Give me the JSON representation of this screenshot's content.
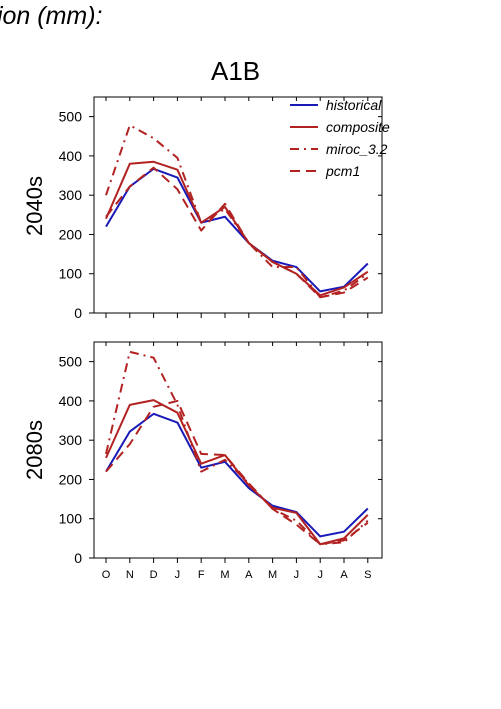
{
  "figure": {
    "title_partial": "tion (mm):",
    "scenario": "A1B",
    "rows": [
      "2040s",
      "2080s"
    ]
  },
  "colors": {
    "historical": "#1a1ab8",
    "scenario": "#b22222"
  },
  "chart_data": [
    {
      "type": "line",
      "panel": "2040s",
      "title": "A1B",
      "ylabel": "2040s",
      "categories": [
        "O",
        "N",
        "D",
        "J",
        "F",
        "M",
        "A",
        "M",
        "J",
        "J",
        "A",
        "S"
      ],
      "ylim": [
        0,
        550
      ],
      "yticks": [
        0,
        100,
        200,
        300,
        400,
        500
      ],
      "legend": "top-right",
      "series": [
        {
          "name": "historical",
          "style": "solid",
          "color": "#1a1ab8",
          "values": [
            220,
            322,
            367,
            345,
            230,
            245,
            178,
            133,
            117,
            55,
            67,
            126
          ]
        },
        {
          "name": "composite",
          "style": "solid",
          "color": "#b22222",
          "values": [
            240,
            380,
            385,
            365,
            230,
            270,
            178,
            130,
            100,
            45,
            65,
            105
          ]
        },
        {
          "name": "miroc_3.2",
          "style": "dashdot",
          "color": "#b22222",
          "values": [
            300,
            478,
            445,
            395,
            230,
            265,
            178,
            117,
            117,
            40,
            57,
            100
          ]
        },
        {
          "name": "pcm1",
          "style": "dashed",
          "color": "#b22222",
          "values": [
            245,
            322,
            370,
            315,
            210,
            278,
            178,
            130,
            100,
            40,
            52,
            90
          ]
        }
      ]
    },
    {
      "type": "line",
      "panel": "2080s",
      "ylabel": "2080s",
      "categories": [
        "O",
        "N",
        "D",
        "J",
        "F",
        "M",
        "A",
        "M",
        "J",
        "J",
        "A",
        "S"
      ],
      "ylim": [
        0,
        550
      ],
      "yticks": [
        0,
        100,
        200,
        300,
        400,
        500
      ],
      "series": [
        {
          "name": "historical",
          "style": "solid",
          "color": "#1a1ab8",
          "values": [
            220,
            322,
            367,
            345,
            230,
            245,
            178,
            133,
            117,
            55,
            67,
            126
          ]
        },
        {
          "name": "composite",
          "style": "solid",
          "color": "#b22222",
          "values": [
            255,
            390,
            402,
            370,
            240,
            262,
            185,
            128,
            115,
            35,
            50,
            110
          ]
        },
        {
          "name": "miroc_3.2",
          "style": "dashdot",
          "color": "#b22222",
          "values": [
            265,
            525,
            510,
            390,
            220,
            250,
            190,
            125,
            95,
            35,
            40,
            95
          ]
        },
        {
          "name": "pcm1",
          "style": "dashed",
          "color": "#b22222",
          "values": [
            220,
            290,
            385,
            400,
            265,
            262,
            190,
            125,
            85,
            35,
            45,
            90
          ]
        }
      ]
    }
  ]
}
